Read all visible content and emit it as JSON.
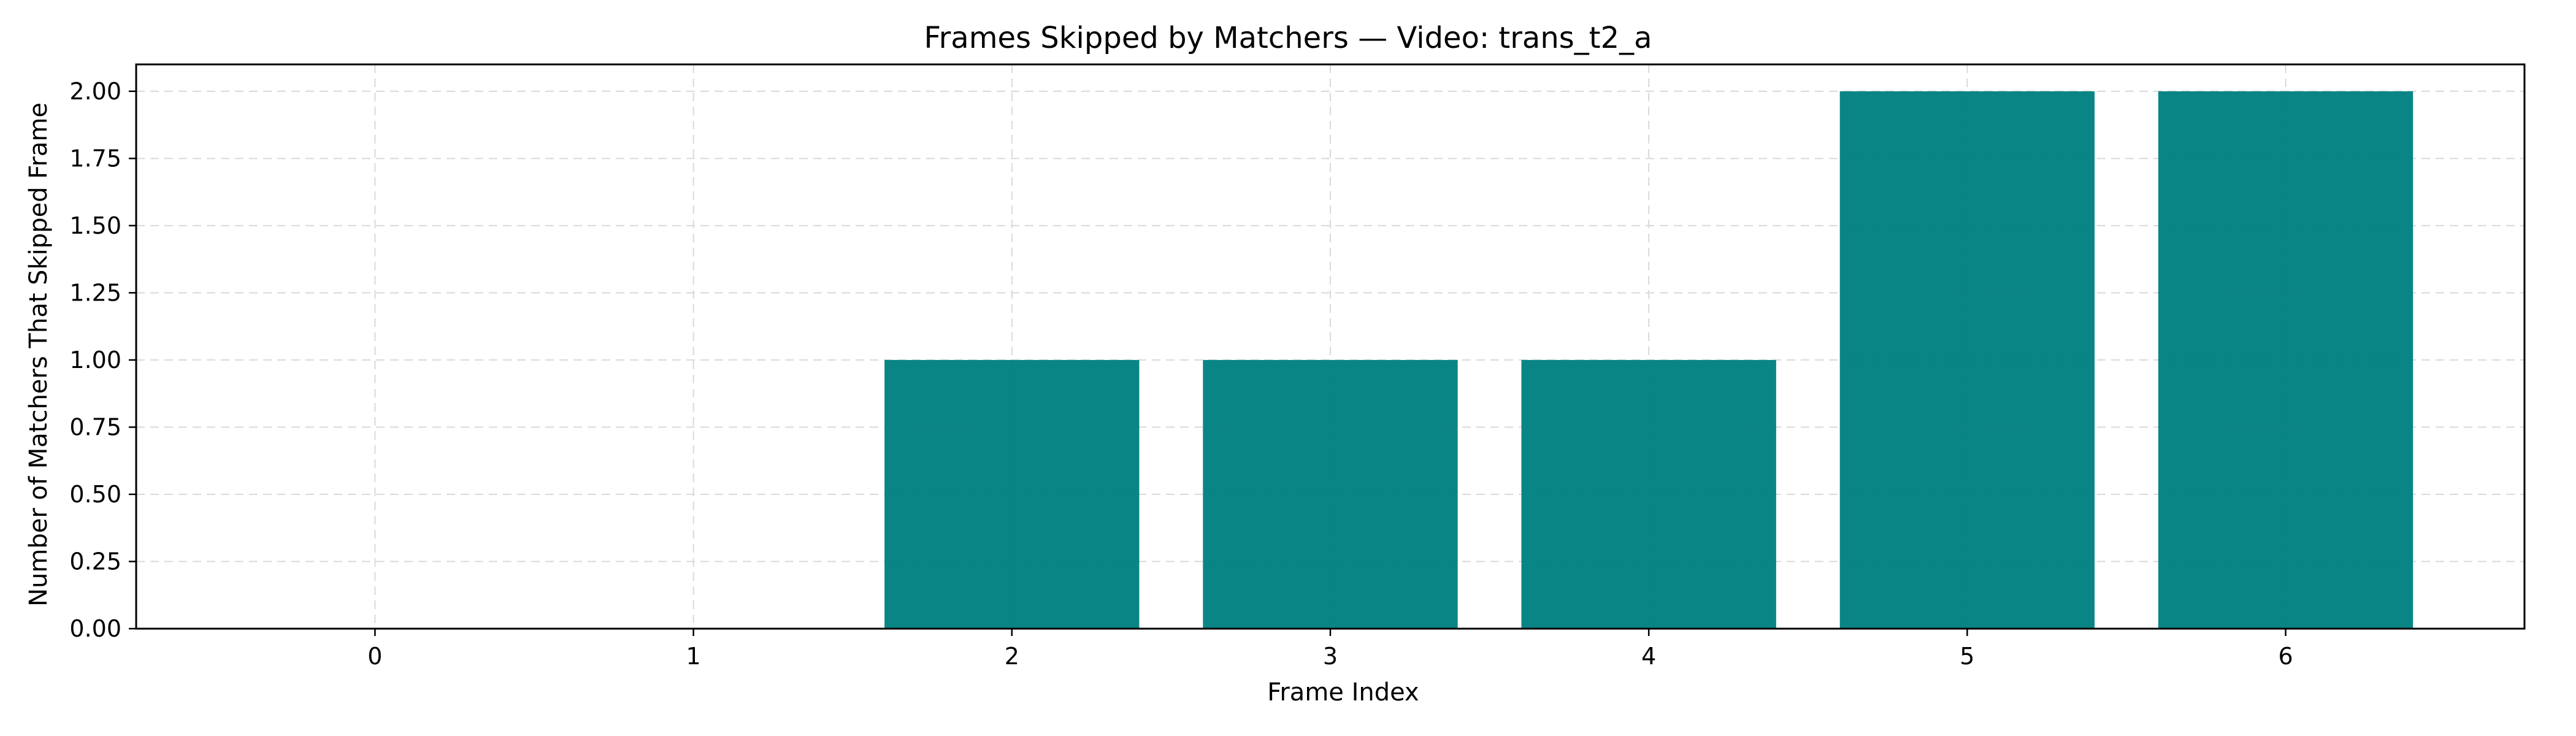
{
  "colors": {
    "bar": "#008080",
    "grid": "#d9d9d9",
    "axis": "#000000",
    "background": "#ffffff"
  },
  "chart_data": {
    "type": "bar",
    "title": "Frames Skipped by Matchers — Video: trans_t2_a",
    "xlabel": "Frame Index",
    "ylabel": "Number of Matchers That Skipped Frame",
    "categories": [
      "0",
      "1",
      "2",
      "3",
      "4",
      "5",
      "6"
    ],
    "values": [
      0,
      0,
      1,
      1,
      1,
      2,
      2
    ],
    "y_ticks": [
      "0.00",
      "0.25",
      "0.50",
      "0.75",
      "1.00",
      "1.25",
      "1.50",
      "1.75",
      "2.00"
    ],
    "ylim": [
      0,
      2.1
    ],
    "grid": true,
    "grid_style": "dashed",
    "legend": "none"
  }
}
